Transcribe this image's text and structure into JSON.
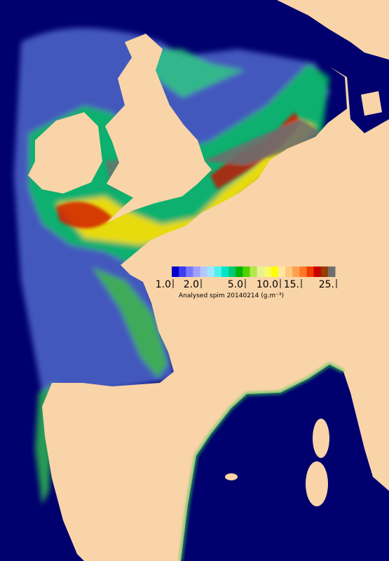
{
  "legend": {
    "ticks": [
      "1.0",
      "2.0",
      "5.0",
      "10.0",
      "15.",
      "25."
    ],
    "title": "Analysed spim 20140214 (g.m⁻³)",
    "colors": [
      "#0000c8",
      "#3c3cf0",
      "#7878ff",
      "#a0a0ff",
      "#b4c8ff",
      "#a0e6ff",
      "#50f0f0",
      "#00e6c8",
      "#00c878",
      "#00b400",
      "#50d200",
      "#b4e650",
      "#e6f096",
      "#fafa64",
      "#ffff00",
      "#ffe6a0",
      "#ffc878",
      "#ffa050",
      "#ff7828",
      "#f03c00",
      "#c80000",
      "#963c00",
      "#6e6e6e"
    ]
  }
}
